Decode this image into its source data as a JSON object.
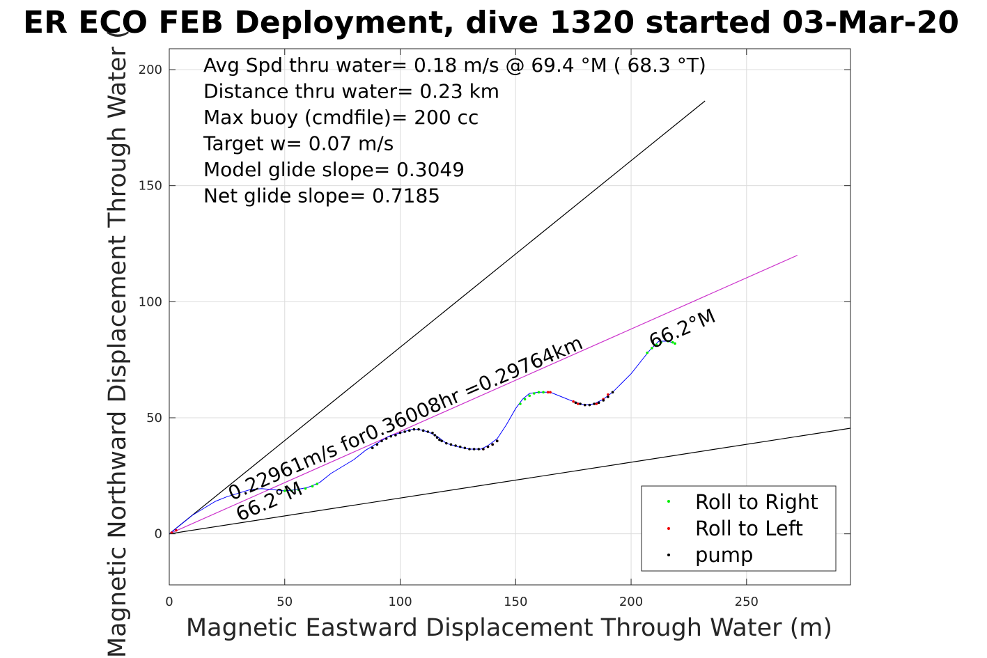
{
  "chart_data": {
    "type": "line",
    "title": "ER ECO FEB Deployment, dive 1320 started 03-Mar-20",
    "xlabel": "Magnetic Eastward Displacement Through Water (m)",
    "ylabel": "Magnetic Northward Displacement Through Water (",
    "xlim": [
      0,
      295
    ],
    "ylim": [
      -22,
      209
    ],
    "x_ticks": [
      0,
      50,
      100,
      150,
      200,
      250
    ],
    "y_ticks": [
      0,
      50,
      100,
      150,
      200
    ],
    "grid": true,
    "stats_lines": [
      "Avg Spd thru water=  0.18 m/s @  69.4 °M ( 68.3 °T)",
      "Distance thru water=  0.23 km",
      "Max buoy (cmdfile)= 200 cc",
      "Target w= 0.07 m/s",
      "Model glide slope= 0.3049",
      "Net glide slope= 0.7185"
    ],
    "annotations": {
      "speed_text": "0.22961m/s for0.36008hr =0.29764km",
      "heading_start": "66.2°M",
      "heading_end": "66.2°M"
    },
    "reference_lines": [
      {
        "x": [
          0,
          232
        ],
        "y": [
          0,
          186.5
        ],
        "color": "#000000"
      },
      {
        "x": [
          0,
          295
        ],
        "y": [
          0,
          45.5
        ],
        "color": "#000000"
      },
      {
        "x": [
          0,
          272
        ],
        "y": [
          0,
          120
        ],
        "color": "#cc33cc"
      }
    ],
    "track": {
      "color": "#0000ff",
      "x": [
        0,
        5,
        10,
        15,
        20,
        25,
        30,
        35,
        40,
        45,
        50,
        55,
        60,
        65,
        70,
        75,
        80,
        85,
        90,
        95,
        100,
        105,
        108,
        112,
        116,
        120,
        125,
        130,
        135,
        138,
        142,
        146,
        150,
        153,
        156,
        160,
        165,
        170,
        175,
        180,
        184,
        188,
        192,
        196,
        200,
        204,
        208,
        212,
        216,
        219
      ],
      "y": [
        0,
        4,
        8,
        11,
        14,
        16,
        17.5,
        19,
        19.5,
        19,
        18.5,
        19,
        20,
        22,
        26,
        29,
        32,
        36,
        39,
        42,
        43.5,
        45,
        45,
        44,
        42,
        39,
        37.5,
        36.5,
        36.5,
        38,
        41,
        47,
        54,
        58,
        60.5,
        61,
        61,
        59,
        57,
        55.5,
        56,
        58,
        61,
        65,
        69,
        74,
        79,
        83,
        83,
        82
      ]
    },
    "series": [
      {
        "name": "Roll to Right",
        "color": "#00ee00",
        "x": [
          50,
          53,
          56,
          59,
          62,
          64,
          152,
          154,
          156,
          158,
          160,
          162,
          207,
          209,
          211,
          213,
          216,
          218,
          219
        ],
        "y": [
          18.5,
          18.5,
          19,
          19.5,
          20.5,
          21.5,
          56,
          58,
          59.5,
          60.5,
          61,
          61,
          78,
          80,
          81.5,
          82.5,
          83,
          82.5,
          82
        ]
      },
      {
        "name": "Roll to Left",
        "color": "#ee0000",
        "x": [
          1,
          3,
          136,
          138,
          140,
          142,
          164,
          165,
          175,
          177,
          180,
          185,
          188,
          190
        ],
        "y": [
          0.5,
          1.5,
          36.5,
          37.5,
          38.5,
          40,
          61,
          61,
          57,
          56,
          55.5,
          56,
          58,
          60
        ]
      },
      {
        "name": "pump",
        "color": "#000000",
        "x": [
          88,
          90,
          92,
          94,
          96,
          98,
          100,
          102,
          104,
          106,
          108,
          110,
          112,
          114,
          115,
          116,
          117,
          118,
          120,
          122,
          124,
          126,
          128,
          130,
          132,
          134,
          136,
          138,
          140,
          142,
          176,
          178,
          180,
          182,
          184,
          186,
          188,
          190,
          192
        ],
        "y": [
          37,
          38.5,
          40,
          41,
          42,
          42.5,
          43.5,
          44,
          44.5,
          45,
          45,
          44.5,
          44,
          43.5,
          42.5,
          41.5,
          40.5,
          40,
          39,
          38.5,
          38,
          37.5,
          37,
          36.5,
          36.5,
          36.5,
          36.5,
          37.5,
          38.5,
          40,
          56.5,
          56,
          55.5,
          55.5,
          56,
          56.5,
          57.5,
          59,
          61
        ]
      }
    ],
    "legend": {
      "position": "bottom-right",
      "entries": [
        "Roll to Right",
        "Roll to Left",
        "pump"
      ]
    }
  }
}
